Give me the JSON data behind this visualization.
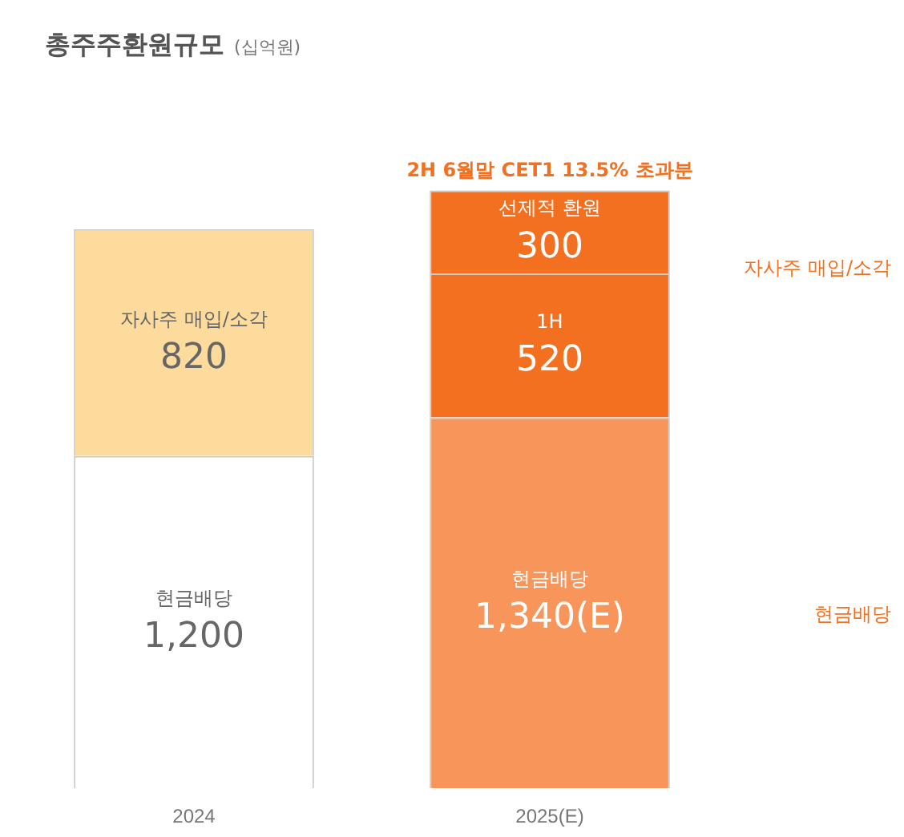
{
  "chart_data": {
    "type": "bar",
    "title": "총주주환원규모",
    "subtitle": "(십억원)",
    "categories": [
      "2024",
      "2025(E)"
    ],
    "stacked": true,
    "legend": false,
    "grid": false,
    "series": [
      {
        "name": "현금배당",
        "colors": [
          "#ffffff",
          "#f7955a"
        ],
        "values": [
          1200,
          1340
        ],
        "value_labels": [
          "1,200",
          "1,340(E)"
        ]
      },
      {
        "name": "1H",
        "color": "#f37021",
        "values": [
          null,
          520
        ],
        "value_labels": [
          null,
          "520"
        ]
      },
      {
        "name": "선제적 환원",
        "color": "#f37021",
        "values": [
          null,
          300
        ],
        "value_labels": [
          null,
          "300"
        ]
      },
      {
        "name": "자사주 매입/소각",
        "color": "#fddb9c",
        "values": [
          820,
          null
        ],
        "value_labels": [
          "820",
          null
        ]
      }
    ],
    "annotations": [
      {
        "text": "2H 6월말 CET1 13.5% 초과분",
        "x": "2025(E)",
        "y": 2160
      },
      "자사주 매입/소각",
      "현금배당"
    ]
  }
}
